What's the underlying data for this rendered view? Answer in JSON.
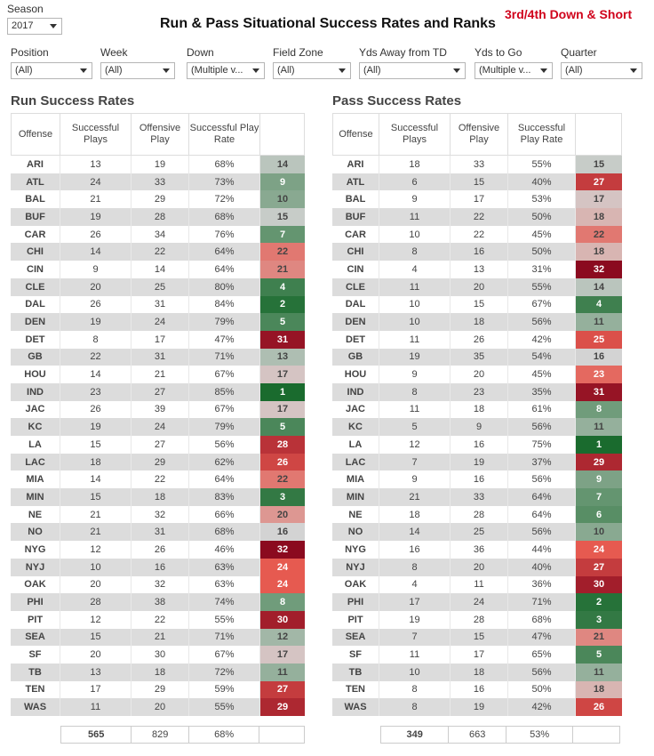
{
  "season": {
    "label": "Season",
    "value": "2017"
  },
  "title": "Run & Pass Situational Success Rates and Ranks",
  "corner_title": "3rd/4th Down & Short",
  "filters": [
    {
      "label": "Position",
      "value": "(All)"
    },
    {
      "label": "Week",
      "value": "(All)"
    },
    {
      "label": "Down",
      "value": "(Multiple v..."
    },
    {
      "label": "Field Zone",
      "value": "(All)"
    },
    {
      "label": "Yds Away from TD",
      "value": "(All)"
    },
    {
      "label": "Yds to Go",
      "value": "(Multiple v..."
    },
    {
      "label": "Quarter",
      "value": "(All)"
    }
  ],
  "run": {
    "title": "Run Success Rates",
    "headers": [
      "Offense",
      "Successful Plays",
      "Offensive Play",
      "Successful Play Rate",
      ""
    ],
    "rows": [
      [
        "ARI",
        "13",
        "19",
        "68%",
        "14"
      ],
      [
        "ATL",
        "24",
        "33",
        "73%",
        "9"
      ],
      [
        "BAL",
        "21",
        "29",
        "72%",
        "10"
      ],
      [
        "BUF",
        "19",
        "28",
        "68%",
        "15"
      ],
      [
        "CAR",
        "26",
        "34",
        "76%",
        "7"
      ],
      [
        "CHI",
        "14",
        "22",
        "64%",
        "22"
      ],
      [
        "CIN",
        "9",
        "14",
        "64%",
        "21"
      ],
      [
        "CLE",
        "20",
        "25",
        "80%",
        "4"
      ],
      [
        "DAL",
        "26",
        "31",
        "84%",
        "2"
      ],
      [
        "DEN",
        "19",
        "24",
        "79%",
        "5"
      ],
      [
        "DET",
        "8",
        "17",
        "47%",
        "31"
      ],
      [
        "GB",
        "22",
        "31",
        "71%",
        "13"
      ],
      [
        "HOU",
        "14",
        "21",
        "67%",
        "17"
      ],
      [
        "IND",
        "23",
        "27",
        "85%",
        "1"
      ],
      [
        "JAC",
        "26",
        "39",
        "67%",
        "17"
      ],
      [
        "KC",
        "19",
        "24",
        "79%",
        "5"
      ],
      [
        "LA",
        "15",
        "27",
        "56%",
        "28"
      ],
      [
        "LAC",
        "18",
        "29",
        "62%",
        "26"
      ],
      [
        "MIA",
        "14",
        "22",
        "64%",
        "22"
      ],
      [
        "MIN",
        "15",
        "18",
        "83%",
        "3"
      ],
      [
        "NE",
        "21",
        "32",
        "66%",
        "20"
      ],
      [
        "NO",
        "21",
        "31",
        "68%",
        "16"
      ],
      [
        "NYG",
        "12",
        "26",
        "46%",
        "32"
      ],
      [
        "NYJ",
        "10",
        "16",
        "63%",
        "24"
      ],
      [
        "OAK",
        "20",
        "32",
        "63%",
        "24"
      ],
      [
        "PHI",
        "28",
        "38",
        "74%",
        "8"
      ],
      [
        "PIT",
        "12",
        "22",
        "55%",
        "30"
      ],
      [
        "SEA",
        "15",
        "21",
        "71%",
        "12"
      ],
      [
        "SF",
        "20",
        "30",
        "67%",
        "17"
      ],
      [
        "TB",
        "13",
        "18",
        "72%",
        "11"
      ],
      [
        "TEN",
        "17",
        "29",
        "59%",
        "27"
      ],
      [
        "WAS",
        "11",
        "20",
        "55%",
        "29"
      ]
    ],
    "totals": [
      "565",
      "829",
      "68%"
    ]
  },
  "pass": {
    "title": "Pass Success Rates",
    "headers": [
      "Offense",
      "Successful Plays",
      "Offensive Play",
      "Successful Play Rate",
      ""
    ],
    "rows": [
      [
        "ARI",
        "18",
        "33",
        "55%",
        "15"
      ],
      [
        "ATL",
        "6",
        "15",
        "40%",
        "27"
      ],
      [
        "BAL",
        "9",
        "17",
        "53%",
        "17"
      ],
      [
        "BUF",
        "11",
        "22",
        "50%",
        "18"
      ],
      [
        "CAR",
        "10",
        "22",
        "45%",
        "22"
      ],
      [
        "CHI",
        "8",
        "16",
        "50%",
        "18"
      ],
      [
        "CIN",
        "4",
        "13",
        "31%",
        "32"
      ],
      [
        "CLE",
        "11",
        "20",
        "55%",
        "14"
      ],
      [
        "DAL",
        "10",
        "15",
        "67%",
        "4"
      ],
      [
        "DEN",
        "10",
        "18",
        "56%",
        "11"
      ],
      [
        "DET",
        "11",
        "26",
        "42%",
        "25"
      ],
      [
        "GB",
        "19",
        "35",
        "54%",
        "16"
      ],
      [
        "HOU",
        "9",
        "20",
        "45%",
        "23"
      ],
      [
        "IND",
        "8",
        "23",
        "35%",
        "31"
      ],
      [
        "JAC",
        "11",
        "18",
        "61%",
        "8"
      ],
      [
        "KC",
        "5",
        "9",
        "56%",
        "11"
      ],
      [
        "LA",
        "12",
        "16",
        "75%",
        "1"
      ],
      [
        "LAC",
        "7",
        "19",
        "37%",
        "29"
      ],
      [
        "MIA",
        "9",
        "16",
        "56%",
        "9"
      ],
      [
        "MIN",
        "21",
        "33",
        "64%",
        "7"
      ],
      [
        "NE",
        "18",
        "28",
        "64%",
        "6"
      ],
      [
        "NO",
        "14",
        "25",
        "56%",
        "10"
      ],
      [
        "NYG",
        "16",
        "36",
        "44%",
        "24"
      ],
      [
        "NYJ",
        "8",
        "20",
        "40%",
        "27"
      ],
      [
        "OAK",
        "4",
        "11",
        "36%",
        "30"
      ],
      [
        "PHI",
        "17",
        "24",
        "71%",
        "2"
      ],
      [
        "PIT",
        "19",
        "28",
        "68%",
        "3"
      ],
      [
        "SEA",
        "7",
        "15",
        "47%",
        "21"
      ],
      [
        "SF",
        "11",
        "17",
        "65%",
        "5"
      ],
      [
        "TB",
        "10",
        "18",
        "56%",
        "11"
      ],
      [
        "TEN",
        "8",
        "16",
        "50%",
        "18"
      ],
      [
        "WAS",
        "8",
        "19",
        "42%",
        "26"
      ]
    ],
    "totals": [
      "349",
      "663",
      "53%"
    ]
  },
  "colors": {
    "title_red": "#d0021b",
    "rank_best": "#1a6b2e",
    "rank_mid": "#d3d3d3",
    "rank_worst": "#8b0a1f"
  }
}
